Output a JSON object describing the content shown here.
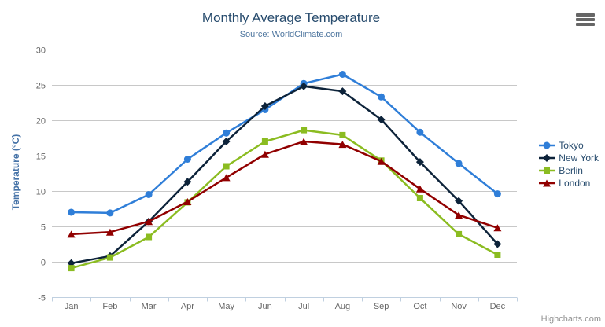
{
  "header": {
    "title": "Monthly Average Temperature",
    "subtitle": "Source: WorldClimate.com"
  },
  "credit": "Highcharts.com",
  "colors": {
    "title": "#274b6d",
    "subtitle": "#4d759e",
    "axis_title": "#4572a7",
    "tick_label": "#666666",
    "grid_line": "#c8c8c8",
    "axis_line": "#c0d0e0",
    "legend_text": "#274b6d",
    "credit": "#909090",
    "menu_icon": "#666666"
  },
  "chart_data": {
    "type": "line",
    "title": "Monthly Average Temperature",
    "subtitle": "Source: WorldClimate.com",
    "categories": [
      "Jan",
      "Feb",
      "Mar",
      "Apr",
      "May",
      "Jun",
      "Jul",
      "Aug",
      "Sep",
      "Oct",
      "Nov",
      "Dec"
    ],
    "series": [
      {
        "name": "Tokyo",
        "color": "#2f7ed8",
        "marker": "circle",
        "values": [
          7.0,
          6.9,
          9.5,
          14.5,
          18.2,
          21.5,
          25.2,
          26.5,
          23.3,
          18.3,
          13.9,
          9.6
        ]
      },
      {
        "name": "New York",
        "color": "#0d233a",
        "marker": "diamond",
        "values": [
          -0.2,
          0.8,
          5.7,
          11.3,
          17.0,
          22.0,
          24.8,
          24.1,
          20.1,
          14.1,
          8.6,
          2.5
        ]
      },
      {
        "name": "Berlin",
        "color": "#8bbc21",
        "marker": "square",
        "values": [
          -0.9,
          0.6,
          3.5,
          8.4,
          13.5,
          17.0,
          18.6,
          17.9,
          14.3,
          9.0,
          3.9,
          1.0
        ]
      },
      {
        "name": "London",
        "color": "#910000",
        "marker": "triangle",
        "values": [
          3.9,
          4.2,
          5.7,
          8.5,
          11.9,
          15.2,
          17.0,
          16.6,
          14.2,
          10.3,
          6.6,
          4.8
        ]
      }
    ],
    "xlabel": "",
    "ylabel": "Temperature (°C)",
    "ylim": [
      -5,
      30
    ],
    "yticks": [
      -5,
      0,
      5,
      10,
      15,
      20,
      25,
      30
    ],
    "grid": true,
    "legend_position": "right"
  }
}
